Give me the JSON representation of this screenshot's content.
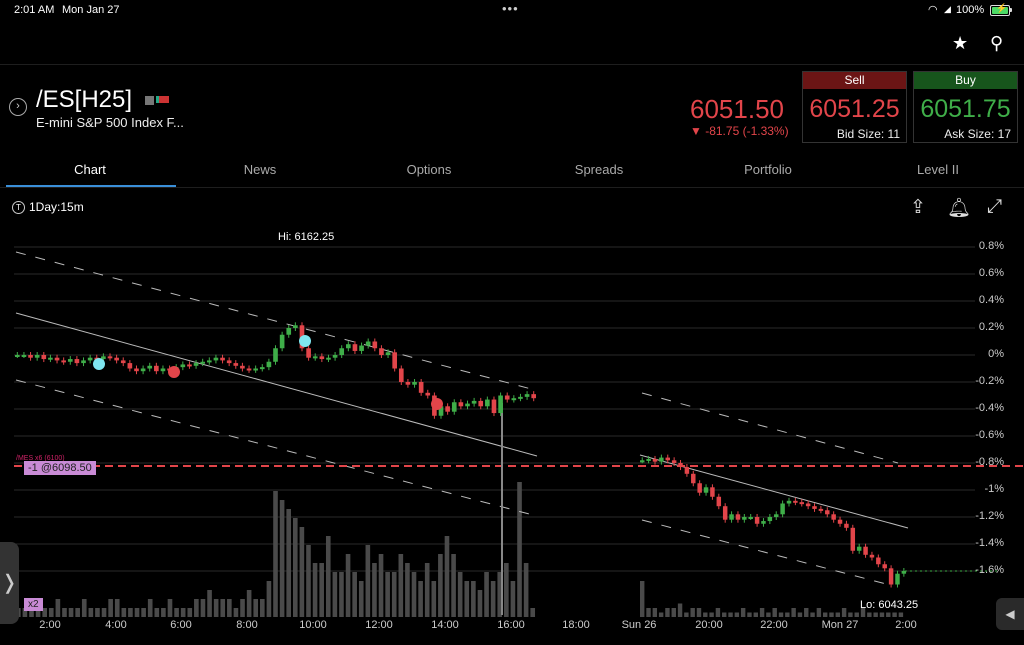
{
  "status_bar": {
    "time": "2:01 AM",
    "date": "Mon Jan 27",
    "battery": "100%"
  },
  "header": {
    "symbol": "/ES[H25]",
    "description": "E-mini S&P 500 Index F...",
    "last_price": "6051.50",
    "change": "▼ -81.75 (-1.33%)",
    "sell": {
      "label": "Sell",
      "price": "6051.25",
      "size": "Bid Size: 11"
    },
    "buy": {
      "label": "Buy",
      "price": "6051.75",
      "size": "Ask Size: 17"
    }
  },
  "tabs": [
    {
      "label": "Chart",
      "active": true
    },
    {
      "label": "News"
    },
    {
      "label": "Options"
    },
    {
      "label": "Spreads"
    },
    {
      "label": "Portfolio"
    },
    {
      "label": "Level II"
    }
  ],
  "chart": {
    "interval": "1Day:15m",
    "hi_label": "Hi: 6162.25",
    "lo_label": "Lo: 6043.25",
    "position_label": "-1 @6098.50",
    "order_label": "/MES x6 (6100)",
    "zoom_label": "x2"
  },
  "colors": {
    "up": "#3fae49",
    "down": "#e2454a",
    "sell_bg": "#6b1515",
    "buy_bg": "#17551c",
    "accent": "#3a8fd8"
  },
  "chart_data": {
    "type": "candlestick",
    "y_ticks": [
      "0.8%",
      "0.6%",
      "0.4%",
      "0.2%",
      "0%",
      "-0.2%",
      "-0.4%",
      "-0.6%",
      "-0.8%",
      "-1%",
      "-1.2%",
      "-1.4%",
      "-1.6%"
    ],
    "x_ticks": [
      "2:00",
      "4:00",
      "6:00",
      "8:00",
      "10:00",
      "12:00",
      "14:00",
      "16:00",
      "18:00",
      "Sun 26",
      "20:00",
      "22:00",
      "Mon 27",
      "2:00"
    ],
    "current_pct": -1.6,
    "segment1_pct": [
      0.0,
      0.0,
      -0.02,
      0.0,
      -0.03,
      -0.02,
      -0.04,
      -0.05,
      -0.03,
      -0.06,
      -0.04,
      -0.02,
      -0.03,
      -0.01,
      -0.02,
      -0.04,
      -0.06,
      -0.1,
      -0.12,
      -0.1,
      -0.08,
      -0.12,
      -0.1,
      -0.11,
      -0.09,
      -0.07,
      -0.08,
      -0.06,
      -0.05,
      -0.04,
      -0.02,
      -0.04,
      -0.06,
      -0.08,
      -0.1,
      -0.11,
      -0.1,
      -0.09,
      -0.05,
      0.05,
      0.15,
      0.2,
      0.22,
      0.05,
      -0.02,
      -0.01,
      -0.03,
      -0.02,
      0.0,
      0.05,
      0.08,
      0.03,
      0.07,
      0.1,
      0.05,
      0.0,
      0.02,
      -0.1,
      -0.2,
      -0.22,
      -0.2,
      -0.28,
      -0.3,
      -0.45,
      -0.38,
      -0.42,
      -0.35,
      -0.38,
      -0.36,
      -0.34,
      -0.38,
      -0.33,
      -0.43,
      -0.3,
      -0.33,
      -0.32,
      -0.31,
      -0.29,
      -0.32
    ],
    "segment2_pct": [
      -0.78,
      -0.77,
      -0.79,
      -0.76,
      -0.78,
      -0.8,
      -0.83,
      -0.88,
      -0.95,
      -1.02,
      -0.98,
      -1.05,
      -1.12,
      -1.22,
      -1.18,
      -1.22,
      -1.2,
      -1.2,
      -1.25,
      -1.23,
      -1.2,
      -1.18,
      -1.1,
      -1.08,
      -1.09,
      -1.1,
      -1.12,
      -1.14,
      -1.15,
      -1.18,
      -1.22,
      -1.25,
      -1.28,
      -1.45,
      -1.42,
      -1.48,
      -1.5,
      -1.55,
      -1.58,
      -1.7,
      -1.62,
      -1.6
    ],
    "volume_segment1": [
      1,
      1,
      2,
      1,
      1,
      1,
      2,
      1,
      1,
      1,
      2,
      1,
      1,
      1,
      2,
      2,
      1,
      1,
      1,
      1,
      2,
      1,
      1,
      2,
      1,
      1,
      1,
      2,
      2,
      3,
      2,
      2,
      2,
      1,
      2,
      3,
      2,
      2,
      4,
      14,
      13,
      12,
      11,
      10,
      8,
      6,
      6,
      9,
      5,
      5,
      7,
      5,
      4,
      8,
      6,
      7,
      5,
      5,
      7,
      6,
      5,
      4,
      6,
      4,
      7,
      9,
      7,
      5,
      4,
      4,
      3,
      5,
      4,
      5,
      6,
      4,
      15,
      6,
      1
    ]
  }
}
